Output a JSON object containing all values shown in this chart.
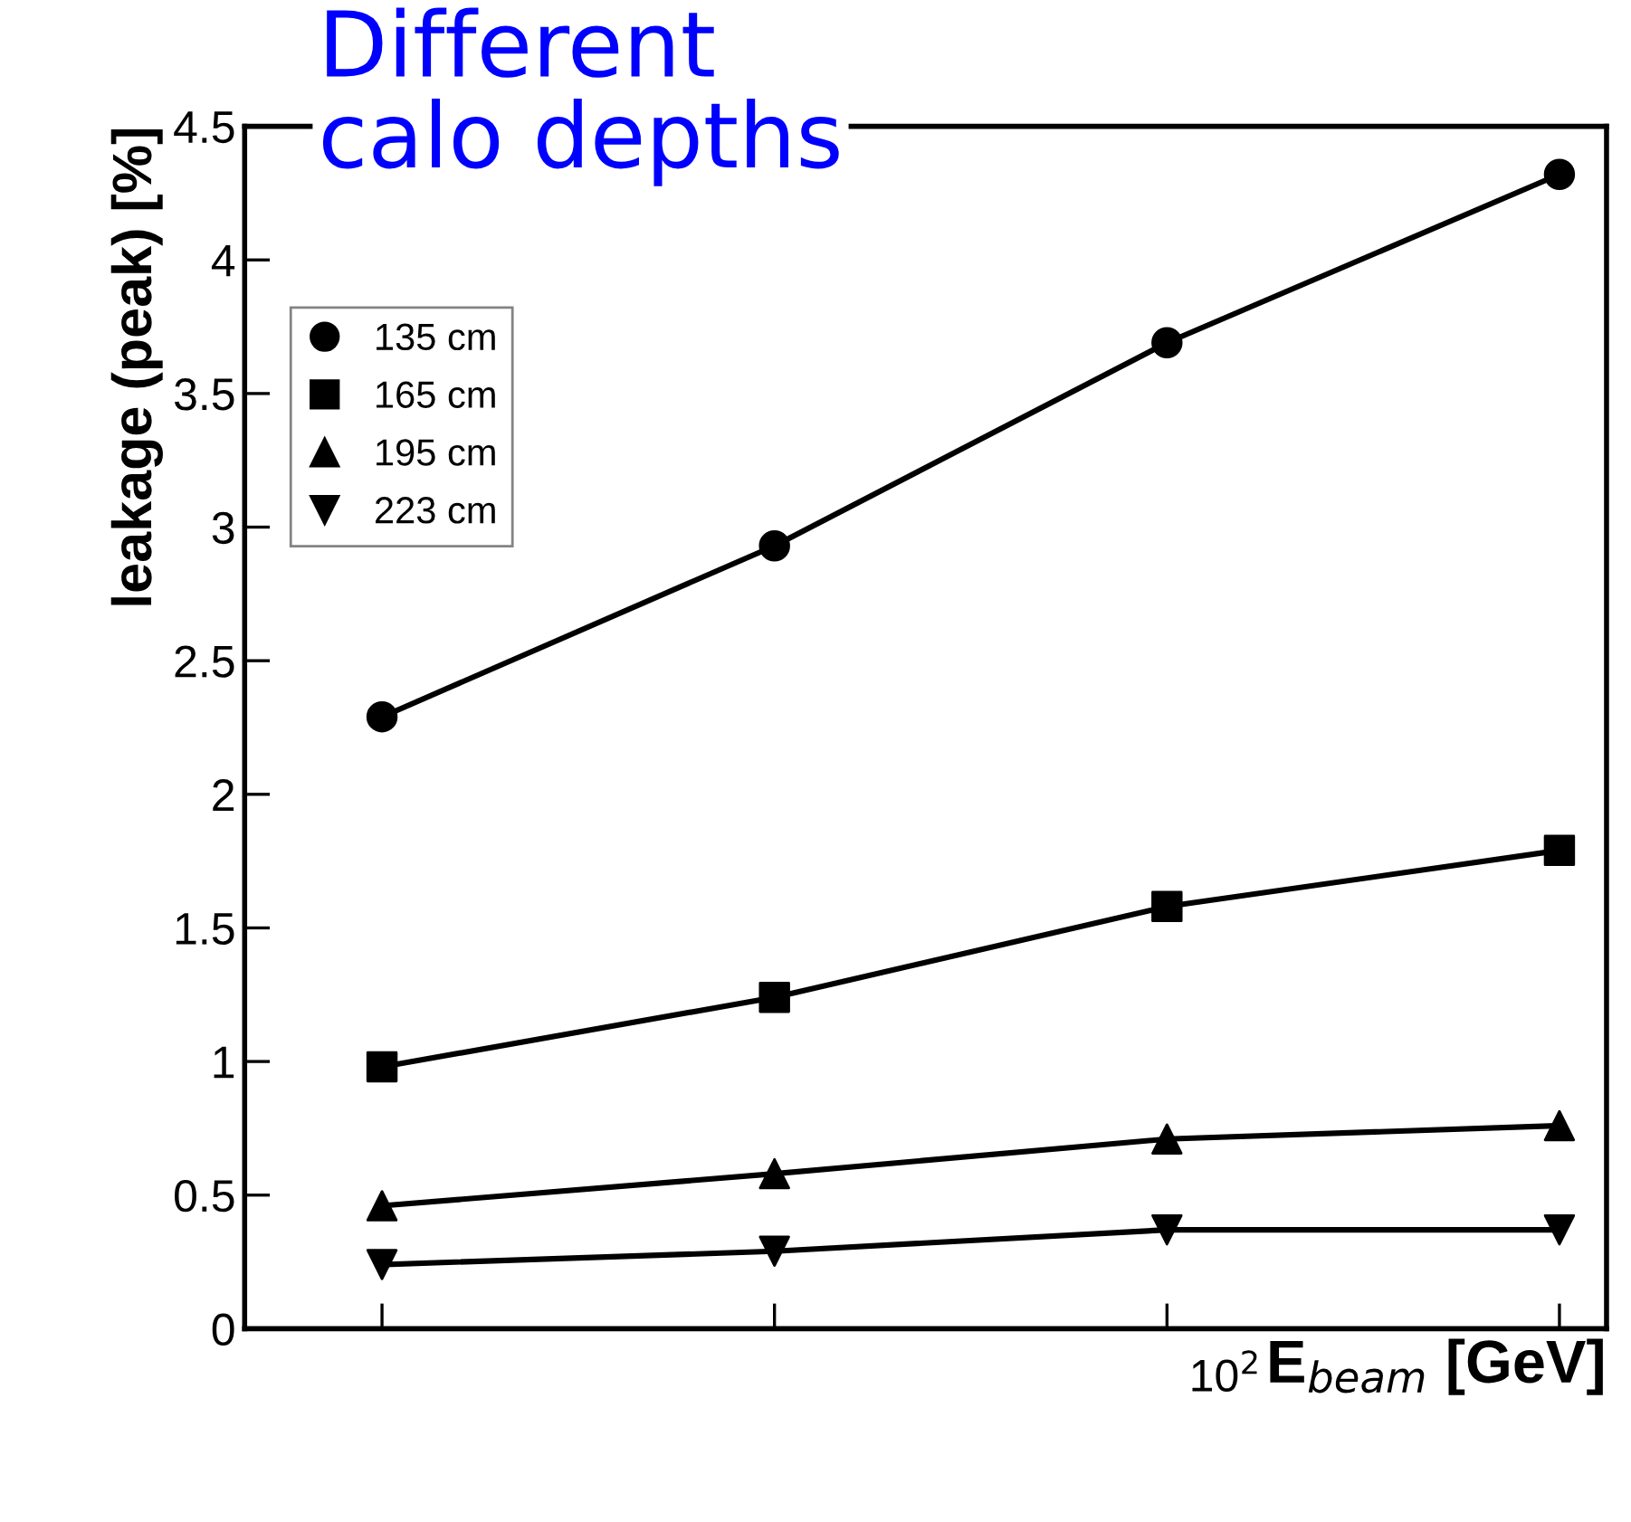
{
  "chart_data": {
    "type": "line",
    "xlabel": "E$_{beam}$ [GeV]",
    "ylabel": "leakage (peak) [%]",
    "annotations": [
      "Different\ncalo depths",
      "10$^{2}$"
    ],
    "categories": [
      null,
      null,
      null,
      null
    ],
    "series": [
      {
        "name": "135 cm",
        "color": "#000000",
        "marker": "circle",
        "values": [
          2.29,
          2.93,
          3.69,
          4.32
        ]
      },
      {
        "name": "165 cm",
        "color": "#000000",
        "marker": "square",
        "values": [
          0.98,
          1.24,
          1.58,
          1.79
        ]
      },
      {
        "name": "195 cm",
        "color": "#000000",
        "marker": "triangle",
        "values": [
          0.46,
          0.58,
          0.71,
          0.76
        ]
      },
      {
        "name": "223 cm",
        "color": "#000000",
        "marker": "triangle_down",
        "values": [
          0.24,
          0.29,
          0.37,
          0.37
        ]
      }
    ],
    "ylim": [
      0,
      4.5
    ],
    "yticks": [
      0,
      0.5,
      1,
      1.5,
      2,
      2.5,
      3,
      3.5,
      4,
      4.5
    ],
    "tick_labels": "y",
    "legend": "top left",
    "grid": false,
    "line_style": "solid"
  }
}
